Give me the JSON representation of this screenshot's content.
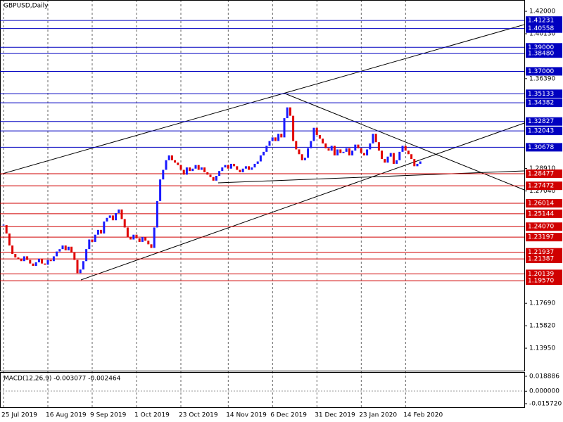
{
  "chart_data": {
    "type": "candlestick",
    "title": "GBPUSD,Daily",
    "categories": [
      "25 Jul 2019",
      null,
      null,
      null,
      null,
      null,
      null,
      null,
      null,
      null,
      null,
      null,
      null,
      null,
      null,
      "16 Aug 2019",
      null,
      null,
      null,
      null,
      null,
      null,
      null,
      null,
      null,
      null,
      null,
      null,
      null,
      null,
      "9 Sep 2019",
      null,
      null,
      null,
      null,
      null,
      null,
      null,
      null,
      null,
      null,
      null,
      null,
      null,
      null,
      "1 Oct 2019",
      null,
      null,
      null,
      null,
      null,
      null,
      null,
      null,
      null,
      null,
      null,
      null,
      null,
      null,
      "23 Oct 2019",
      null,
      null,
      null,
      null,
      null,
      null,
      null,
      null,
      null,
      null,
      null,
      null,
      null,
      null,
      null,
      "14 Nov 2019",
      null,
      null,
      null,
      null,
      null,
      null,
      null,
      null,
      null,
      null,
      null,
      null,
      null,
      null,
      "6 Dec 2019",
      null,
      null,
      null,
      null,
      null,
      null,
      null,
      null,
      null,
      null,
      null,
      null,
      null,
      null,
      "31 Dec 2019",
      null,
      null,
      null,
      null,
      null,
      null,
      null,
      null,
      null,
      null,
      null,
      null,
      null,
      null,
      "23 Jan 2020",
      null,
      null,
      null,
      null,
      null,
      null,
      null,
      null,
      null,
      null,
      null,
      null,
      null,
      null,
      "14 Feb 2020",
      null,
      null,
      null,
      null,
      null
    ],
    "close": [
      1.242,
      1.235,
      1.225,
      1.218,
      1.215,
      1.214,
      1.212,
      1.216,
      1.213,
      1.21,
      1.208,
      1.211,
      1.214,
      1.21,
      1.209,
      1.213,
      1.212,
      1.216,
      1.22,
      1.222,
      1.225,
      1.221,
      1.224,
      1.219,
      1.213,
      1.202,
      1.205,
      1.212,
      1.222,
      1.23,
      1.228,
      1.234,
      1.238,
      1.235,
      1.245,
      1.248,
      1.25,
      1.246,
      1.252,
      1.255,
      1.247,
      1.24,
      1.232,
      1.23,
      1.234,
      1.231,
      1.228,
      1.232,
      1.229,
      1.226,
      1.223,
      1.24,
      1.262,
      1.28,
      1.288,
      1.296,
      1.3,
      1.296,
      1.294,
      1.292,
      1.288,
      1.284,
      1.29,
      1.287,
      1.289,
      1.292,
      1.288,
      1.29,
      1.286,
      1.284,
      1.282,
      1.279,
      1.283,
      1.287,
      1.29,
      1.292,
      1.289,
      1.293,
      1.291,
      1.288,
      1.286,
      1.289,
      1.291,
      1.288,
      1.29,
      1.293,
      1.295,
      1.3,
      1.303,
      1.308,
      1.312,
      1.315,
      1.312,
      1.318,
      1.315,
      1.331,
      1.34,
      1.333,
      1.312,
      1.305,
      1.301,
      1.296,
      1.298,
      1.306,
      1.312,
      1.323,
      1.317,
      1.314,
      1.31,
      1.306,
      1.304,
      1.308,
      1.3,
      1.305,
      1.302,
      1.303,
      1.306,
      1.3,
      1.304,
      1.309,
      1.306,
      1.302,
      1.3,
      1.305,
      1.31,
      1.318,
      1.311,
      1.304,
      1.297,
      1.294,
      1.299,
      1.302,
      1.293,
      1.296,
      1.303,
      1.308,
      1.304,
      1.301,
      1.297,
      1.291,
      1.293,
      1.295
    ],
    "up_color": "#1a1aff",
    "down_color": "#e00000",
    "ylim": [
      1.1208,
      1.4294
    ],
    "yticks": [
      {
        "value": 1.42,
        "label": "1.42000"
      },
      {
        "value": 1.4013,
        "label": "1.40130"
      },
      {
        "value": 1.3639,
        "label": "1.36390"
      },
      {
        "value": 1.2891,
        "label": "1.28910"
      },
      {
        "value": 1.2704,
        "label": "1.27040"
      },
      {
        "value": 1.1769,
        "label": "1.17690"
      },
      {
        "value": 1.1582,
        "label": "1.15820"
      },
      {
        "value": 1.1395,
        "label": "1.13950"
      }
    ],
    "levels": [
      {
        "value": 1.41231,
        "label": "1.41231",
        "color": "#0000c0"
      },
      {
        "value": 1.40558,
        "label": "1.40558",
        "color": "#0000c0"
      },
      {
        "value": 1.39,
        "label": "1.39000",
        "color": "#0000c0"
      },
      {
        "value": 1.3848,
        "label": "1.38480",
        "color": "#0000c0"
      },
      {
        "value": 1.37,
        "label": "1.37000",
        "color": "#0000c0"
      },
      {
        "value": 1.35133,
        "label": "1.35133",
        "color": "#0000c0"
      },
      {
        "value": 1.34382,
        "label": "1.34382",
        "color": "#0000c0"
      },
      {
        "value": 1.32827,
        "label": "1.32827",
        "color": "#0000c0"
      },
      {
        "value": 1.32043,
        "label": "1.32043",
        "color": "#0000c0"
      },
      {
        "value": 1.30678,
        "label": "1.30678",
        "color": "#0000c0"
      },
      {
        "value": 1.28477,
        "label": "1.28477",
        "color": "#d00000"
      },
      {
        "value": 1.27472,
        "label": "1.27472",
        "color": "#d00000"
      },
      {
        "value": 1.26014,
        "label": "1.26014",
        "color": "#d00000"
      },
      {
        "value": 1.25144,
        "label": "1.25144",
        "color": "#d00000"
      },
      {
        "value": 1.2407,
        "label": "1.24070",
        "color": "#d00000"
      },
      {
        "value": 1.23197,
        "label": "1.23197",
        "color": "#d00000"
      },
      {
        "value": 1.21937,
        "label": "1.21937",
        "color": "#d00000"
      },
      {
        "value": 1.21387,
        "label": "1.21387",
        "color": "#d00000"
      },
      {
        "value": 1.20139,
        "label": "1.20139",
        "color": "#d00000"
      },
      {
        "value": 1.1957,
        "label": "1.19570",
        "color": "#d00000"
      }
    ],
    "macd": {
      "title": "MACD(12,26,9) -0.003077 -0.002464",
      "ylim": [
        -0.0211,
        0.0242
      ],
      "yticks": [
        0.018886,
        {
          "value": 0,
          "label": "0.000000"
        },
        {
          "value": -0.01572,
          "label": "-0.015720"
        }
      ]
    }
  }
}
